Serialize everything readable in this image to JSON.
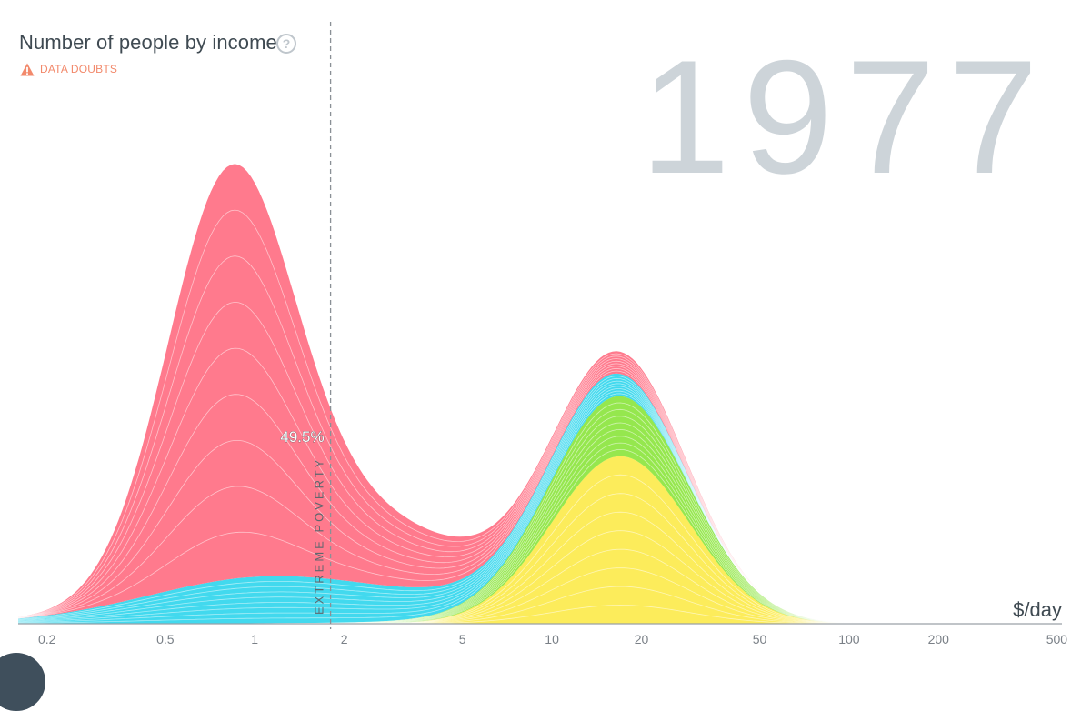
{
  "header": {
    "title": "Number of people by income",
    "help_icon": "question-circle-icon",
    "data_doubts": {
      "icon": "warning-triangle-icon",
      "label": "DATA DOUBTS",
      "color": "#f2896b"
    },
    "year": "1977"
  },
  "chart_data": {
    "type": "area",
    "title": "Number of people by income",
    "xlabel": "$/day",
    "ylabel": "",
    "x_scale": "log",
    "xlim": [
      0.16,
      520
    ],
    "ticks": [
      "0.2",
      "0.5",
      "1",
      "2",
      "5",
      "10",
      "20",
      "50",
      "100",
      "200",
      "500"
    ],
    "tick_values": [
      0.2,
      0.5,
      1,
      2,
      5,
      10,
      20,
      50,
      100,
      200,
      500
    ],
    "grid": false,
    "legend": "none",
    "poverty_line": {
      "x": 1.8,
      "label": "EXTREME POVERTY",
      "percent_below": "49.5%"
    },
    "series": [
      {
        "color": "#fcec5b",
        "peaks": [
          {
            "x": 17,
            "height": 0.275,
            "sigma": 0.23
          }
        ]
      },
      {
        "color": "#95e74e",
        "peaks": [
          {
            "x": 16.5,
            "height": 0.098,
            "sigma": 0.25
          },
          {
            "x": 5,
            "height": 0.004,
            "sigma": 0.3
          }
        ]
      },
      {
        "color": "#42d9ee",
        "peaks": [
          {
            "x": 1.1,
            "height": 0.076,
            "sigma": 0.4
          },
          {
            "x": 5,
            "height": 0.018,
            "sigma": 0.3
          },
          {
            "x": 15,
            "height": 0.033,
            "sigma": 0.2
          }
        ]
      },
      {
        "color": "#ff7a8d",
        "peaks": [
          {
            "x": 0.82,
            "height": 0.64,
            "sigma": 0.21
          },
          {
            "x": 1.8,
            "height": 0.09,
            "sigma": 0.26
          },
          {
            "x": 4,
            "height": 0.05,
            "sigma": 0.25
          },
          {
            "x": 17,
            "height": 0.034,
            "sigma": 0.2
          }
        ]
      }
    ]
  }
}
